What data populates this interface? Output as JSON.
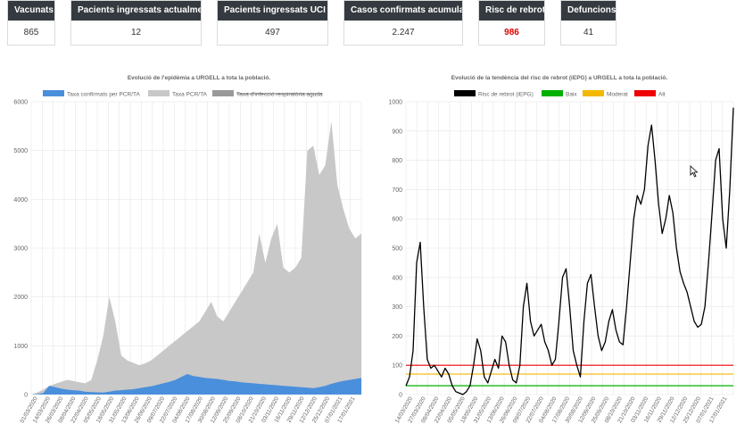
{
  "stats": [
    {
      "label": "Vacunats",
      "value": "865",
      "alert": false
    },
    {
      "label": "Pacients ingressats actualment",
      "value": "12",
      "alert": false
    },
    {
      "label": "Pacients ingressats UCI **",
      "value": "497",
      "alert": false
    },
    {
      "label": "Casos confirmats acumulats",
      "value": "2.247",
      "alert": false
    },
    {
      "label": "Risc de rebrot",
      "value": "986",
      "alert": true
    },
    {
      "label": "Defuncions",
      "value": "41",
      "alert": false
    }
  ],
  "chart_data": [
    {
      "type": "area",
      "title": "Evolució de l'epidèmia a URGELL a tota la població.",
      "ylim": [
        0,
        6000
      ],
      "yticks": [
        0,
        1000,
        2000,
        3000,
        4000,
        5000,
        6000
      ],
      "legend_position": "top",
      "x_labels": [
        "01/03/2020",
        "14/03/2020",
        "26/03/2020",
        "08/04/2020",
        "22/04/2020",
        "05/05/2020",
        "18/05/2020",
        "31/05/2020",
        "13/06/2020",
        "26/06/2020",
        "09/07/2020",
        "22/07/2020",
        "04/08/2020",
        "17/08/2020",
        "30/08/2020",
        "12/09/2020",
        "25/09/2020",
        "08/10/2020",
        "21/10/2020",
        "03/11/2020",
        "16/11/2020",
        "29/11/2020",
        "12/12/2020",
        "25/12/2020",
        "07/01/2021",
        "17/01/2021"
      ],
      "series": [
        {
          "name": "Taxa confirmats per PCR/TA",
          "color": "#4a8fdb",
          "values": [
            0,
            10,
            30,
            180,
            150,
            120,
            100,
            90,
            80,
            60,
            50,
            45,
            40,
            60,
            80,
            90,
            100,
            110,
            130,
            150,
            170,
            200,
            230,
            260,
            300,
            360,
            420,
            380,
            360,
            340,
            330,
            320,
            300,
            280,
            270,
            250,
            240,
            230,
            220,
            210,
            200,
            190,
            180,
            170,
            160,
            150,
            140,
            130,
            150,
            180,
            220,
            250,
            280,
            300,
            320,
            340
          ]
        },
        {
          "name": "Taxa PCR/TA",
          "color": "#c8c8c8",
          "values": [
            0,
            40,
            100,
            180,
            220,
            260,
            300,
            280,
            250,
            230,
            300,
            700,
            1200,
            2000,
            1500,
            800,
            700,
            650,
            600,
            640,
            700,
            800,
            900,
            1000,
            1100,
            1200,
            1300,
            1400,
            1500,
            1700,
            1900,
            1600,
            1500,
            1700,
            1900,
            2100,
            2300,
            2500,
            3300,
            2700,
            3200,
            3500,
            2600,
            2500,
            2600,
            2800,
            5000,
            5100,
            4500,
            4700,
            5600,
            4300,
            3800,
            3400,
            3200,
            3300
          ]
        },
        {
          "name": "Taxa d'infecció respiratòria aguda",
          "color": "#999999",
          "values": [],
          "hidden": true
        }
      ]
    },
    {
      "type": "line",
      "title": "Evolució de la tendència del risc de rebrot (iEPG) a URGELL a tota la població.",
      "ylim": [
        0,
        1000
      ],
      "yticks": [
        0,
        100,
        200,
        300,
        400,
        500,
        600,
        700,
        800,
        900,
        1000
      ],
      "legend_position": "top",
      "x_labels": [
        "14/03/2020",
        "27/03/2020",
        "09/04/2020",
        "22/04/2020",
        "05/05/2020",
        "18/05/2020",
        "31/05/2020",
        "13/06/2020",
        "26/06/2020",
        "09/07/2020",
        "22/07/2020",
        "04/08/2020",
        "17/08/2020",
        "30/08/2020",
        "12/09/2020",
        "25/09/2020",
        "08/10/2020",
        "21/10/2020",
        "03/11/2020",
        "16/11/2020",
        "29/11/2020",
        "12/12/2020",
        "25/12/2020",
        "07/01/2021",
        "17/01/2021"
      ],
      "series": [
        {
          "name": "Risc de rebrot (iEPG)",
          "color": "#000000",
          "values": [
            30,
            60,
            150,
            450,
            520,
            300,
            120,
            90,
            100,
            80,
            60,
            90,
            70,
            30,
            10,
            5,
            0,
            10,
            30,
            100,
            190,
            150,
            60,
            40,
            80,
            120,
            90,
            200,
            180,
            100,
            50,
            40,
            100,
            300,
            380,
            250,
            200,
            220,
            240,
            180,
            150,
            100,
            120,
            250,
            400,
            430,
            300,
            150,
            100,
            60,
            250,
            380,
            410,
            300,
            200,
            150,
            180,
            250,
            290,
            220,
            180,
            170,
            300,
            450,
            600,
            680,
            650,
            700,
            850,
            920,
            800,
            650,
            550,
            600,
            680,
            620,
            500,
            420,
            380,
            350,
            300,
            250,
            230,
            240,
            300,
            450,
            620,
            800,
            840,
            600,
            500,
            700,
            980
          ]
        },
        {
          "name": "Baix",
          "color": "#00b000",
          "values": [
            30
          ]
        },
        {
          "name": "Moderat",
          "color": "#f5b800",
          "values": [
            70
          ]
        },
        {
          "name": "Alt",
          "color": "#ee0000",
          "values": [
            100
          ]
        }
      ]
    }
  ]
}
